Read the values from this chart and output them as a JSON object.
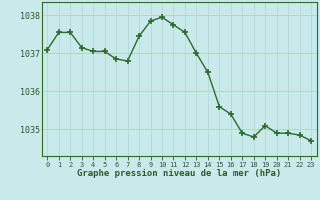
{
  "hours": [
    0,
    1,
    2,
    3,
    4,
    5,
    6,
    7,
    8,
    9,
    10,
    11,
    12,
    13,
    14,
    15,
    16,
    17,
    18,
    19,
    20,
    21,
    22,
    23
  ],
  "pressure": [
    1037.1,
    1037.55,
    1037.55,
    1037.15,
    1037.05,
    1037.05,
    1036.85,
    1036.8,
    1037.45,
    1037.85,
    1037.95,
    1037.75,
    1037.55,
    1037.0,
    1036.5,
    1035.6,
    1035.4,
    1034.9,
    1034.8,
    1035.1,
    1034.9,
    1034.9,
    1034.85,
    1034.7
  ],
  "line_color": "#2d6a2d",
  "marker_color": "#2d6a2d",
  "bg_color": "#c8eaea",
  "grid_color_h": "#e8b8b8",
  "grid_color_v": "#b8d8d8",
  "axis_label_color": "#2d5a2d",
  "tick_color": "#2d5a2d",
  "xlabel": "Graphe pression niveau de la mer (hPa)",
  "ylim_min": 1034.3,
  "ylim_max": 1038.35,
  "yticks": [
    1035,
    1036,
    1037,
    1038
  ],
  "spine_color": "#2d6a2d"
}
